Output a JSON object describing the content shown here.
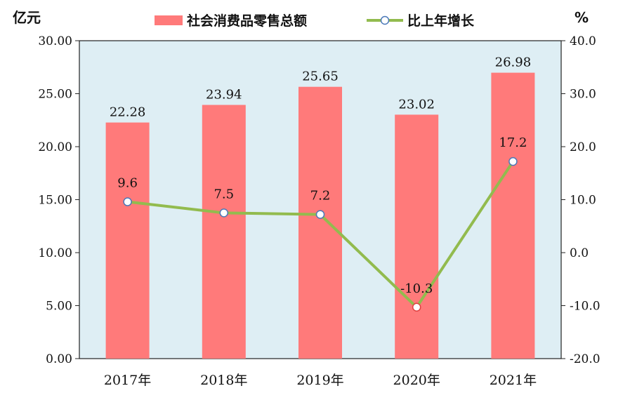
{
  "chart_data": {
    "type": "bar+line",
    "categories": [
      "2017年",
      "2018年",
      "2019年",
      "2020年",
      "2021年"
    ],
    "series": [
      {
        "name": "社会消费品零售总额",
        "type": "bar",
        "axis": "left",
        "values": [
          22.28,
          23.94,
          25.65,
          23.02,
          26.98
        ],
        "labels": [
          "22.28",
          "23.94",
          "25.65",
          "23.02",
          "26.98"
        ]
      },
      {
        "name": "比上年增长",
        "type": "line",
        "axis": "right",
        "values": [
          9.6,
          7.5,
          7.2,
          -10.3,
          17.2
        ],
        "labels": [
          "9.6",
          "7.5",
          "7.2",
          "-10.3",
          "17.2"
        ]
      }
    ],
    "left_axis": {
      "unit": "亿元",
      "ylim": [
        0,
        30
      ],
      "ticks": [
        0,
        5,
        10,
        15,
        20,
        25,
        30
      ],
      "tick_labels": [
        "0.00",
        "5.00",
        "10.00",
        "15.00",
        "20.00",
        "25.00",
        "30.00"
      ]
    },
    "right_axis": {
      "unit": "%",
      "ylim": [
        -20,
        40
      ],
      "ticks": [
        -20,
        -10,
        0,
        10,
        20,
        30,
        40
      ],
      "tick_labels": [
        "-20.0",
        "-10.0",
        "0.0",
        "10.0",
        "20.0",
        "30.0",
        "40.0"
      ]
    },
    "legend_position": "top-center",
    "colors": {
      "bar": "#ff7a7a",
      "line": "#92bb4e",
      "plot_background": "#deeef4",
      "marker_fill": "#ffffff",
      "marker_stroke_positive": "#4a78b8",
      "marker_stroke_negative": "#e04040"
    }
  }
}
